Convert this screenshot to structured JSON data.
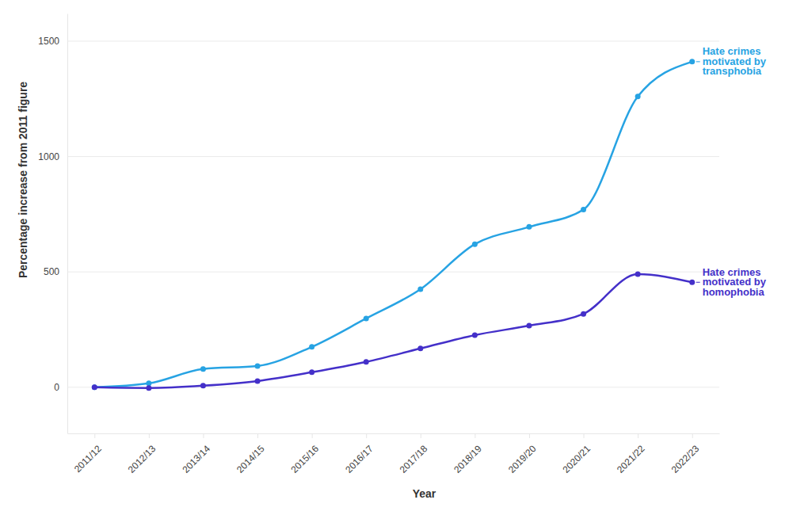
{
  "chart_data": {
    "type": "line",
    "x_label": "Year",
    "y_label": "Percentage increase from 2011 figure",
    "categories": [
      "2011/12",
      "2012/13",
      "2013/14",
      "2014/15",
      "2015/16",
      "2016/17",
      "2017/18",
      "2018/19",
      "2019/20",
      "2020/21",
      "2021/22",
      "2022/23"
    ],
    "series": [
      {
        "name": "Hate crimes motivated by transphobia",
        "color": "#27a3e3",
        "marker": "circle",
        "values": [
          0,
          17,
          79,
          92,
          175,
          298,
          425,
          620,
          695,
          770,
          1260,
          1411
        ]
      },
      {
        "name": "Hate crimes motivated by homophobia",
        "color": "#4430c9",
        "marker": "circle",
        "values": [
          0,
          -3,
          7,
          27,
          65,
          110,
          168,
          226,
          267,
          318,
          490,
          455
        ]
      }
    ],
    "ylim": [
      -200,
      1620
    ],
    "yticks": [
      0,
      500,
      1000,
      1500
    ],
    "grid": true
  }
}
